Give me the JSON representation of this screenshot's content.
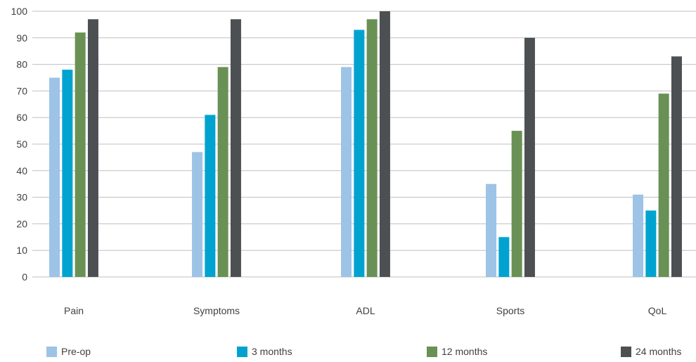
{
  "chart_data": {
    "type": "bar",
    "categories": [
      "Pain",
      "Symptoms",
      "ADL",
      "Sports",
      "QoL"
    ],
    "series": [
      {
        "name": "Pre-op",
        "color": "#9dc3e6",
        "values": [
          75,
          47,
          79,
          35,
          31
        ]
      },
      {
        "name": "3 months",
        "color": "#00a3d0",
        "values": [
          78,
          61,
          93,
          15,
          25
        ]
      },
      {
        "name": "12 months",
        "color": "#6a9155",
        "values": [
          92,
          79,
          97,
          55,
          69
        ]
      },
      {
        "name": "24 months",
        "color": "#4d5052",
        "values": [
          97,
          97,
          100,
          90,
          83
        ]
      }
    ],
    "yticks": [
      "0",
      "10",
      "20",
      "30",
      "40",
      "50",
      "60",
      "70",
      "80",
      "90",
      "100"
    ],
    "ylim": [
      0,
      100
    ],
    "grid": true,
    "legend_position": "bottom"
  }
}
